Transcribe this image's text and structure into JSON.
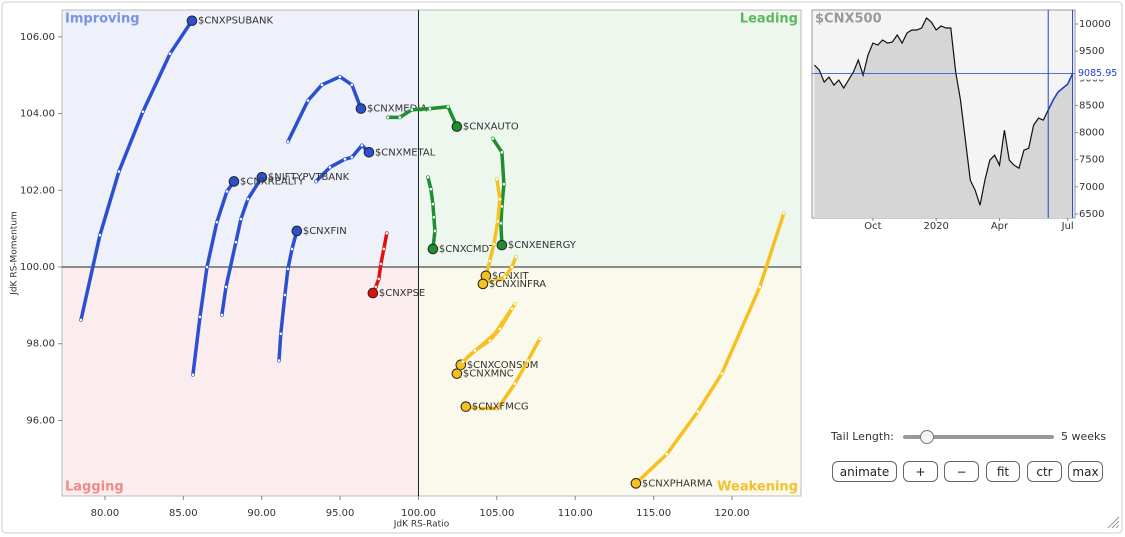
{
  "chart_data": [
    {
      "type": "scatter",
      "xlabel": "JdK RS-Ratio",
      "ylabel": "JdK RS-Momentum",
      "xlim": [
        77.26,
        124.4
      ],
      "ylim": [
        94.03,
        106.7
      ],
      "xticks": [
        {
          "value": 80,
          "label": "80.00"
        },
        {
          "value": 85,
          "label": "85.00"
        },
        {
          "value": 90,
          "label": "90.00"
        },
        {
          "value": 95,
          "label": "95.00"
        },
        {
          "value": 100,
          "label": "100.00"
        },
        {
          "value": 105,
          "label": "105.00"
        },
        {
          "value": 110,
          "label": "110.00"
        },
        {
          "value": 115,
          "label": "115.00"
        },
        {
          "value": 120,
          "label": "120.00"
        }
      ],
      "yticks": [
        {
          "value": 96,
          "label": "96.00"
        },
        {
          "value": 98,
          "label": "98.00"
        },
        {
          "value": 100,
          "label": "100.00"
        },
        {
          "value": 102,
          "label": "102.00"
        },
        {
          "value": 104,
          "label": "104.00"
        },
        {
          "value": 106,
          "label": "106.00"
        }
      ],
      "center": [
        100,
        100
      ],
      "quadrants": [
        {
          "name": "Improving",
          "color": "#7b93e3"
        },
        {
          "name": "Leading",
          "color": "#5cb85c"
        },
        {
          "name": "Lagging",
          "color": "#f08a8a"
        },
        {
          "name": "Weakening",
          "color": "#f2c12e"
        }
      ],
      "series": [
        {
          "name": "$CNXPSUBANK",
          "color": "#2b4fd1",
          "x": [
            78.47,
            79.68,
            80.89,
            82.42,
            84.15,
            85.55
          ],
          "y": [
            98.62,
            100.83,
            102.49,
            104.05,
            105.56,
            106.42
          ]
        },
        {
          "name": "$CNXMEDIA",
          "color": "#2b4fd1",
          "x": [
            91.67,
            92.95,
            93.84,
            94.99,
            95.75,
            96.33
          ],
          "y": [
            103.27,
            104.34,
            104.75,
            104.96,
            104.75,
            104.13
          ]
        },
        {
          "name": "$CNXAUTO",
          "color": "#1e8f2e",
          "x": [
            98.05,
            98.81,
            99.58,
            100.73,
            101.88,
            102.45
          ],
          "y": [
            103.9,
            103.9,
            104.1,
            104.13,
            104.18,
            103.66
          ]
        },
        {
          "name": "$CNXMETAL",
          "color": "#2b4fd1",
          "x": [
            93.46,
            94.35,
            95.31,
            95.75,
            96.39,
            96.84
          ],
          "y": [
            102.23,
            102.6,
            102.81,
            102.86,
            103.17,
            102.99
          ]
        },
        {
          "name": "$NIFTYPVTBANK",
          "color": "#2b4fd1",
          "x": [
            87.46,
            87.72,
            88.35,
            88.67,
            89.12,
            90.01
          ],
          "y": [
            98.75,
            99.48,
            100.65,
            101.25,
            101.77,
            102.34
          ]
        },
        {
          "name": "$CNXREALTY",
          "color": "#2b4fd1",
          "x": [
            85.61,
            86.06,
            86.51,
            87.14,
            87.78,
            88.23
          ],
          "y": [
            97.19,
            98.7,
            100.0,
            101.17,
            101.97,
            102.23
          ]
        },
        {
          "name": "$CNXFIN",
          "color": "#2b4fd1",
          "x": [
            91.1,
            91.22,
            91.48,
            91.67,
            91.93,
            92.24
          ],
          "y": [
            97.56,
            98.26,
            99.27,
            99.95,
            100.47,
            100.94
          ]
        },
        {
          "name": "$CNXPSE",
          "color": "#e01010",
          "x": [
            97.98,
            97.79,
            97.6,
            97.47,
            97.28,
            97.09
          ],
          "y": [
            100.88,
            100.47,
            100.08,
            99.69,
            99.48,
            99.32
          ]
        },
        {
          "name": "$CNXCMDT",
          "color": "#1e8f2e",
          "x": [
            100.6,
            100.79,
            100.92,
            100.98,
            101.05,
            100.92
          ],
          "y": [
            102.34,
            102.03,
            101.64,
            101.3,
            100.94,
            100.47
          ]
        },
        {
          "name": "$CNXENERGY",
          "color": "#1e8f2e",
          "x": [
            104.74,
            105.32,
            105.45,
            105.32,
            105.26,
            105.32
          ],
          "y": [
            103.35,
            102.99,
            102.16,
            101.58,
            101.14,
            100.57
          ]
        },
        {
          "name": "$CNXIT",
          "color": "#f5c020",
          "x": [
            105.0,
            105.19,
            105.06,
            104.81,
            104.55,
            104.3
          ],
          "y": [
            102.29,
            101.77,
            101.19,
            100.6,
            100.16,
            99.77
          ]
        },
        {
          "name": "$CNXINFRA",
          "color": "#f5c020",
          "x": [
            106.21,
            105.96,
            105.51,
            104.87,
            104.3,
            104.11
          ],
          "y": [
            100.26,
            100.0,
            99.74,
            99.61,
            99.64,
            99.56
          ]
        },
        {
          "name": "$CNXCONSUM",
          "color": "#f5c020",
          "x": [
            106.15,
            105.51,
            104.87,
            103.92,
            103.15,
            102.7
          ],
          "y": [
            99.04,
            98.65,
            98.26,
            97.92,
            97.66,
            97.45
          ]
        },
        {
          "name": "$CNXMNC",
          "color": "#f5c020",
          "x": [
            105.96,
            105.19,
            104.55,
            103.6,
            102.83,
            102.45
          ],
          "y": [
            98.91,
            98.39,
            98.08,
            97.82,
            97.53,
            97.22
          ]
        },
        {
          "name": "$CNXFMCG",
          "color": "#f5c020",
          "x": [
            107.74,
            106.98,
            106.15,
            105.06,
            103.79,
            103.02
          ],
          "y": [
            98.13,
            97.56,
            96.96,
            96.31,
            96.31,
            96.36
          ]
        },
        {
          "name": "$CNXPHARMA",
          "color": "#f5c020",
          "x": [
            123.3,
            121.77,
            119.35,
            117.82,
            115.84,
            113.87
          ],
          "y": [
            101.4,
            99.48,
            97.22,
            96.23,
            95.12,
            94.36
          ]
        }
      ]
    },
    {
      "type": "line",
      "title": "$CNX500",
      "color": "#111111",
      "tail_color": "#2244cc",
      "categories": [
        null,
        null,
        null,
        null,
        null,
        null,
        null,
        null,
        null,
        null,
        null,
        null,
        "Oct",
        null,
        null,
        null,
        null,
        null,
        null,
        null,
        null,
        null,
        null,
        null,
        null,
        "2020",
        null,
        null,
        null,
        null,
        null,
        null,
        null,
        null,
        null,
        null,
        null,
        null,
        "Apr",
        null,
        null,
        null,
        null,
        null,
        null,
        null,
        null,
        null,
        null,
        null,
        null,
        null,
        "Jul",
        null
      ],
      "values": [
        9244,
        9151,
        8930,
        9022,
        8875,
        8967,
        8819,
        8967,
        9114,
        9336,
        9059,
        9428,
        9649,
        9613,
        9705,
        9649,
        9668,
        9797,
        9649,
        9834,
        9889,
        9889,
        9926,
        10111,
        10037,
        9889,
        9963,
        9926,
        9926,
        9114,
        8598,
        7860,
        7122,
        6937,
        6661,
        7122,
        7491,
        7583,
        7399,
        8044,
        7491,
        7399,
        7343,
        7675,
        7712,
        8137,
        8266,
        8229,
        8413,
        8598,
        8745,
        8819,
        8893,
        9085.95
      ],
      "current_value": 9085.95,
      "ylim": [
        6426,
        10258
      ],
      "yticks": [
        6500,
        7000,
        7500,
        8000,
        8500,
        9000,
        9500,
        10000
      ]
    }
  ],
  "controls": {
    "tail_label": "Tail Length:",
    "tail_value": "5 weeks",
    "buttons": [
      "animate",
      "+",
      "−",
      "fit",
      "ctr",
      "max"
    ]
  }
}
